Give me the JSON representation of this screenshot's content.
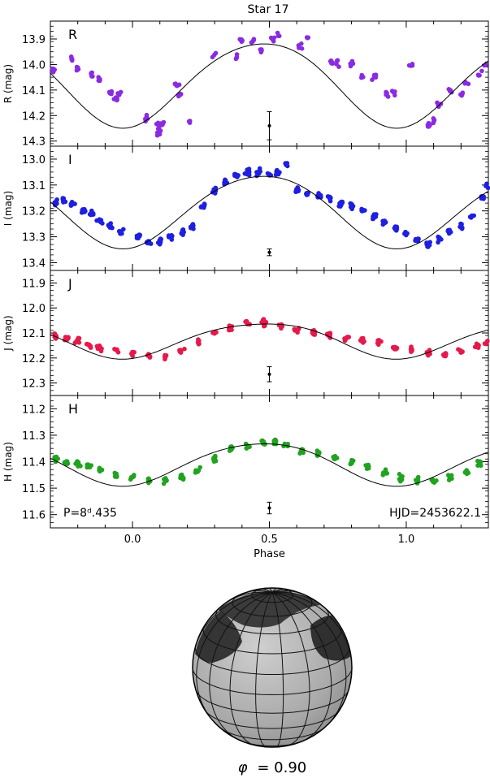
{
  "title": "Star 17",
  "phase_label": "Phi = 0.90",
  "phase_symbol": "φ",
  "phase_value": "=  0.90",
  "colors": {
    "R": "#8a2be2",
    "I": "#1f1fe0",
    "J": "#e6194b",
    "H": "#21a321"
  },
  "chart_data": [
    {
      "type": "scatter",
      "band": "R",
      "ylabel": "R (mag)",
      "y_reversed": true,
      "ylim": [
        14.32,
        13.83
      ],
      "yticks": [
        13.9,
        14.0,
        14.1,
        14.2,
        14.3
      ],
      "xlim": [
        -0.3,
        1.3
      ],
      "model": {
        "mean": 14.07,
        "a1": 0.165,
        "phi1": 0.47,
        "a2": 0.015,
        "phi2": 0.2
      },
      "errorbar": {
        "x": 0.5,
        "y": 14.24,
        "err": 0.055
      },
      "clusters": [
        {
          "x": -0.29,
          "y": 14.02,
          "n": 8
        },
        {
          "x": -0.22,
          "y": 13.98,
          "n": 6
        },
        {
          "x": -0.2,
          "y": 14.01,
          "n": 6
        },
        {
          "x": -0.15,
          "y": 14.04,
          "n": 5
        },
        {
          "x": -0.12,
          "y": 14.06,
          "n": 5
        },
        {
          "x": -0.08,
          "y": 14.11,
          "n": 6
        },
        {
          "x": -0.06,
          "y": 14.13,
          "n": 7
        },
        {
          "x": -0.05,
          "y": 14.12,
          "n": 5
        },
        {
          "x": 0.05,
          "y": 14.21,
          "n": 5
        },
        {
          "x": 0.09,
          "y": 14.24,
          "n": 7
        },
        {
          "x": 0.1,
          "y": 14.27,
          "n": 6
        },
        {
          "x": 0.11,
          "y": 14.23,
          "n": 5
        },
        {
          "x": 0.16,
          "y": 14.08,
          "n": 5
        },
        {
          "x": 0.17,
          "y": 14.12,
          "n": 5
        },
        {
          "x": 0.21,
          "y": 14.23,
          "n": 3
        },
        {
          "x": 0.3,
          "y": 13.96,
          "n": 3
        },
        {
          "x": 0.38,
          "y": 13.97,
          "n": 4
        },
        {
          "x": 0.4,
          "y": 13.9,
          "n": 6
        },
        {
          "x": 0.44,
          "y": 13.9,
          "n": 5
        },
        {
          "x": 0.47,
          "y": 13.94,
          "n": 4
        },
        {
          "x": 0.51,
          "y": 13.9,
          "n": 5
        },
        {
          "x": 0.53,
          "y": 13.89,
          "n": 3
        },
        {
          "x": 0.61,
          "y": 13.93,
          "n": 5
        },
        {
          "x": 0.64,
          "y": 13.9,
          "n": 3
        },
        {
          "x": 0.73,
          "y": 13.99,
          "n": 5
        },
        {
          "x": 0.75,
          "y": 14.0,
          "n": 4
        },
        {
          "x": 0.8,
          "y": 14.0,
          "n": 5
        },
        {
          "x": 0.84,
          "y": 14.05,
          "n": 4
        },
        {
          "x": 0.88,
          "y": 14.05,
          "n": 5
        },
        {
          "x": 0.93,
          "y": 14.12,
          "n": 5
        },
        {
          "x": 0.95,
          "y": 14.11,
          "n": 5
        },
        {
          "x": 1.02,
          "y": 14.0,
          "n": 5
        },
        {
          "x": 1.08,
          "y": 14.24,
          "n": 6
        },
        {
          "x": 1.1,
          "y": 14.22,
          "n": 6
        },
        {
          "x": 1.12,
          "y": 14.16,
          "n": 5
        },
        {
          "x": 1.16,
          "y": 14.1,
          "n": 4
        },
        {
          "x": 1.2,
          "y": 14.12,
          "n": 5
        },
        {
          "x": 1.22,
          "y": 14.07,
          "n": 3
        },
        {
          "x": 1.27,
          "y": 14.04,
          "n": 4
        },
        {
          "x": 1.29,
          "y": 14.0,
          "n": 3
        }
      ]
    },
    {
      "type": "scatter",
      "band": "I",
      "ylabel": "I (mag)",
      "y_reversed": true,
      "ylim": [
        13.43,
        12.95
      ],
      "yticks": [
        13.0,
        13.1,
        13.2,
        13.3,
        13.4
      ],
      "xlim": [
        -0.3,
        1.3
      ],
      "model": {
        "mean": 13.195,
        "a1": 0.14,
        "phi1": 0.47,
        "a2": 0.012,
        "phi2": 0.2
      },
      "errorbar": {
        "x": 0.5,
        "y": 13.36,
        "err": 0.013
      },
      "clusters": [
        {
          "x": -0.28,
          "y": 13.17,
          "n": 10
        },
        {
          "x": -0.25,
          "y": 13.16,
          "n": 9
        },
        {
          "x": -0.22,
          "y": 13.17,
          "n": 9
        },
        {
          "x": -0.18,
          "y": 13.2,
          "n": 9
        },
        {
          "x": -0.15,
          "y": 13.21,
          "n": 8
        },
        {
          "x": -0.12,
          "y": 13.24,
          "n": 9
        },
        {
          "x": -0.08,
          "y": 13.26,
          "n": 8
        },
        {
          "x": -0.04,
          "y": 13.28,
          "n": 9
        },
        {
          "x": 0.02,
          "y": 13.3,
          "n": 8
        },
        {
          "x": 0.06,
          "y": 13.32,
          "n": 9
        },
        {
          "x": 0.1,
          "y": 13.32,
          "n": 10
        },
        {
          "x": 0.14,
          "y": 13.3,
          "n": 8
        },
        {
          "x": 0.18,
          "y": 13.28,
          "n": 8
        },
        {
          "x": 0.22,
          "y": 13.26,
          "n": 8
        },
        {
          "x": 0.26,
          "y": 13.18,
          "n": 7
        },
        {
          "x": 0.3,
          "y": 13.12,
          "n": 8
        },
        {
          "x": 0.34,
          "y": 13.09,
          "n": 8
        },
        {
          "x": 0.38,
          "y": 13.06,
          "n": 8
        },
        {
          "x": 0.42,
          "y": 13.05,
          "n": 8
        },
        {
          "x": 0.46,
          "y": 13.05,
          "n": 9
        },
        {
          "x": 0.5,
          "y": 13.06,
          "n": 9
        },
        {
          "x": 0.53,
          "y": 13.05,
          "n": 8
        },
        {
          "x": 0.56,
          "y": 13.02,
          "n": 5
        },
        {
          "x": 0.6,
          "y": 13.12,
          "n": 8
        },
        {
          "x": 0.64,
          "y": 13.13,
          "n": 8
        },
        {
          "x": 0.68,
          "y": 13.14,
          "n": 8
        },
        {
          "x": 0.72,
          "y": 13.15,
          "n": 9
        },
        {
          "x": 0.76,
          "y": 13.17,
          "n": 9
        },
        {
          "x": 0.8,
          "y": 13.18,
          "n": 9
        },
        {
          "x": 0.84,
          "y": 13.2,
          "n": 8
        },
        {
          "x": 0.88,
          "y": 13.22,
          "n": 8
        },
        {
          "x": 0.92,
          "y": 13.24,
          "n": 9
        },
        {
          "x": 0.96,
          "y": 13.27,
          "n": 8
        },
        {
          "x": 1.0,
          "y": 13.29,
          "n": 8
        },
        {
          "x": 1.04,
          "y": 13.31,
          "n": 9
        },
        {
          "x": 1.08,
          "y": 13.33,
          "n": 9
        },
        {
          "x": 1.12,
          "y": 13.31,
          "n": 8
        },
        {
          "x": 1.16,
          "y": 13.28,
          "n": 8
        },
        {
          "x": 1.2,
          "y": 13.26,
          "n": 8
        },
        {
          "x": 1.24,
          "y": 13.22,
          "n": 7
        },
        {
          "x": 1.28,
          "y": 13.15,
          "n": 7
        },
        {
          "x": 1.295,
          "y": 13.1,
          "n": 4
        }
      ]
    },
    {
      "type": "scatter",
      "band": "J",
      "ylabel": "J (mag)",
      "y_reversed": true,
      "ylim": [
        12.35,
        11.85
      ],
      "yticks": [
        11.9,
        12.0,
        12.1,
        12.2,
        12.3
      ],
      "xlim": [
        -0.3,
        1.3
      ],
      "model": {
        "mean": 12.125,
        "a1": 0.07,
        "phi1": 0.47,
        "a2": 0.01,
        "phi2": 0.2
      },
      "errorbar": {
        "x": 0.5,
        "y": 12.265,
        "err": 0.03
      },
      "clusters": [
        {
          "x": -0.28,
          "y": 12.11,
          "n": 9
        },
        {
          "x": -0.24,
          "y": 12.12,
          "n": 9
        },
        {
          "x": -0.2,
          "y": 12.13,
          "n": 9
        },
        {
          "x": -0.16,
          "y": 12.15,
          "n": 9
        },
        {
          "x": -0.12,
          "y": 12.16,
          "n": 9
        },
        {
          "x": -0.06,
          "y": 12.17,
          "n": 7
        },
        {
          "x": 0.0,
          "y": 12.18,
          "n": 7
        },
        {
          "x": 0.06,
          "y": 12.19,
          "n": 8
        },
        {
          "x": 0.12,
          "y": 12.19,
          "n": 8
        },
        {
          "x": 0.18,
          "y": 12.17,
          "n": 7
        },
        {
          "x": 0.24,
          "y": 12.14,
          "n": 7
        },
        {
          "x": 0.3,
          "y": 12.1,
          "n": 7
        },
        {
          "x": 0.36,
          "y": 12.08,
          "n": 8
        },
        {
          "x": 0.42,
          "y": 12.06,
          "n": 8
        },
        {
          "x": 0.48,
          "y": 12.06,
          "n": 9
        },
        {
          "x": 0.54,
          "y": 12.07,
          "n": 8
        },
        {
          "x": 0.6,
          "y": 12.09,
          "n": 8
        },
        {
          "x": 0.66,
          "y": 12.1,
          "n": 8
        },
        {
          "x": 0.72,
          "y": 12.11,
          "n": 8
        },
        {
          "x": 0.78,
          "y": 12.12,
          "n": 8
        },
        {
          "x": 0.84,
          "y": 12.13,
          "n": 9
        },
        {
          "x": 0.9,
          "y": 12.14,
          "n": 9
        },
        {
          "x": 0.96,
          "y": 12.16,
          "n": 8
        },
        {
          "x": 1.02,
          "y": 12.17,
          "n": 8
        },
        {
          "x": 1.08,
          "y": 12.18,
          "n": 8
        },
        {
          "x": 1.14,
          "y": 12.19,
          "n": 8
        },
        {
          "x": 1.2,
          "y": 12.17,
          "n": 8
        },
        {
          "x": 1.26,
          "y": 12.15,
          "n": 7
        },
        {
          "x": 1.29,
          "y": 12.14,
          "n": 5
        }
      ]
    },
    {
      "type": "scatter",
      "band": "H",
      "ylabel": "H (mag)",
      "y_reversed": true,
      "ylim": [
        11.65,
        11.15
      ],
      "yticks": [
        11.2,
        11.3,
        11.4,
        11.5,
        11.6
      ],
      "xlim": [
        -0.3,
        1.3
      ],
      "xticks": [
        0.0,
        0.5,
        1.0
      ],
      "xticklabels": [
        "0.0",
        "0.5",
        "1.0"
      ],
      "xlabel": "Phase",
      "model": {
        "mean": 11.405,
        "a1": 0.08,
        "phi1": 0.47,
        "a2": 0.008,
        "phi2": 0.2
      },
      "errorbar": {
        "x": 0.5,
        "y": 11.575,
        "err": 0.022
      },
      "period_text": "P=8ᵈ.435",
      "hjd_text": "HJD=2453622.1",
      "clusters": [
        {
          "x": -0.28,
          "y": 11.39,
          "n": 9
        },
        {
          "x": -0.24,
          "y": 11.4,
          "n": 9
        },
        {
          "x": -0.2,
          "y": 11.41,
          "n": 9
        },
        {
          "x": -0.16,
          "y": 11.42,
          "n": 9
        },
        {
          "x": -0.12,
          "y": 11.43,
          "n": 8
        },
        {
          "x": -0.06,
          "y": 11.45,
          "n": 8
        },
        {
          "x": 0.0,
          "y": 11.46,
          "n": 7
        },
        {
          "x": 0.06,
          "y": 11.47,
          "n": 8
        },
        {
          "x": 0.12,
          "y": 11.47,
          "n": 8
        },
        {
          "x": 0.18,
          "y": 11.46,
          "n": 7
        },
        {
          "x": 0.24,
          "y": 11.43,
          "n": 6
        },
        {
          "x": 0.3,
          "y": 11.39,
          "n": 7
        },
        {
          "x": 0.36,
          "y": 11.35,
          "n": 8
        },
        {
          "x": 0.42,
          "y": 11.34,
          "n": 8
        },
        {
          "x": 0.48,
          "y": 11.33,
          "n": 9
        },
        {
          "x": 0.52,
          "y": 11.32,
          "n": 8
        },
        {
          "x": 0.56,
          "y": 11.34,
          "n": 8
        },
        {
          "x": 0.62,
          "y": 11.36,
          "n": 8
        },
        {
          "x": 0.68,
          "y": 11.37,
          "n": 8
        },
        {
          "x": 0.74,
          "y": 11.39,
          "n": 8
        },
        {
          "x": 0.8,
          "y": 11.4,
          "n": 8
        },
        {
          "x": 0.86,
          "y": 11.42,
          "n": 9
        },
        {
          "x": 0.92,
          "y": 11.44,
          "n": 8
        },
        {
          "x": 0.98,
          "y": 11.46,
          "n": 8
        },
        {
          "x": 1.04,
          "y": 11.47,
          "n": 8
        },
        {
          "x": 1.1,
          "y": 11.47,
          "n": 8
        },
        {
          "x": 1.16,
          "y": 11.46,
          "n": 8
        },
        {
          "x": 1.22,
          "y": 11.44,
          "n": 7
        },
        {
          "x": 1.27,
          "y": 11.41,
          "n": 6
        }
      ]
    }
  ]
}
